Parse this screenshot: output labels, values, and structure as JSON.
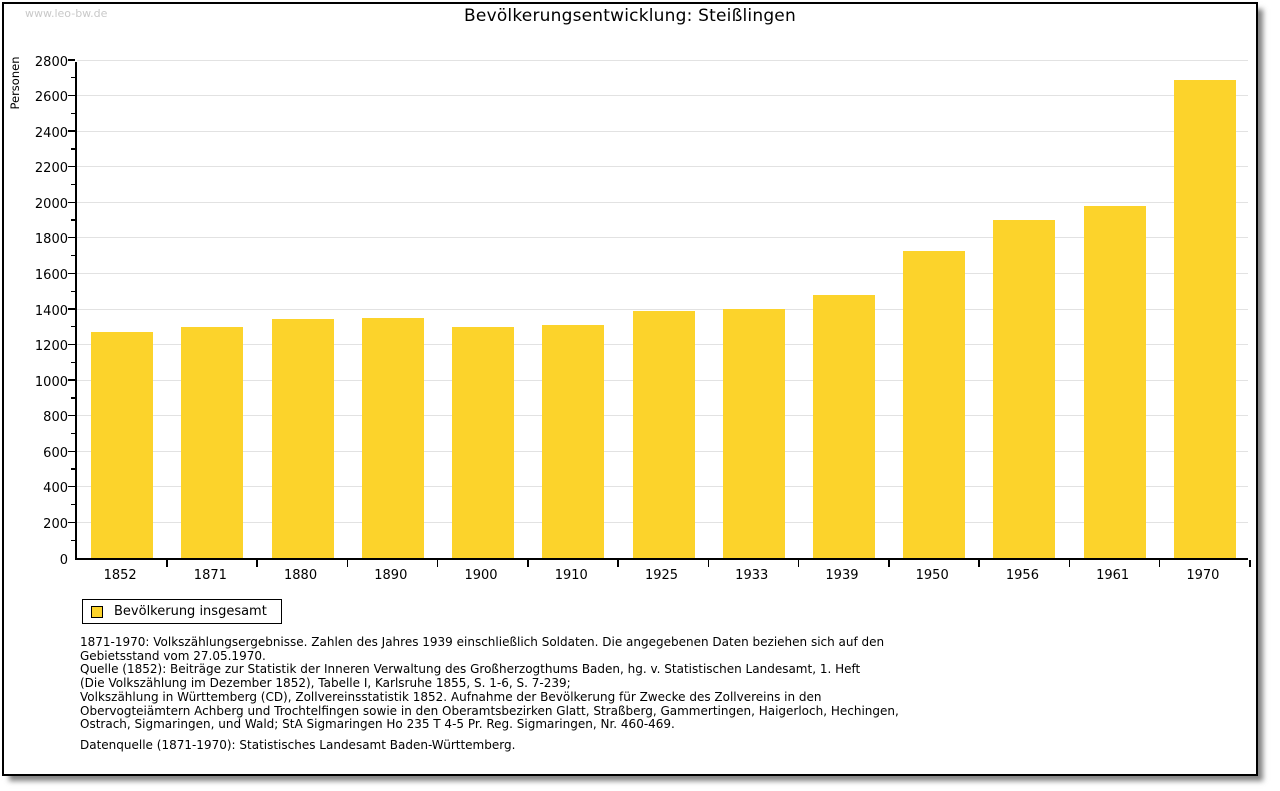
{
  "page": {
    "watermark": "www.leo-bw.de",
    "title": "Bevölkerungsentwicklung: Steißlingen"
  },
  "chart_data": {
    "type": "bar",
    "title": "Bevölkerungsentwicklung: Steißlingen",
    "xlabel": "",
    "ylabel": "Personen",
    "categories": [
      "1852",
      "1871",
      "1880",
      "1890",
      "1900",
      "1910",
      "1925",
      "1933",
      "1939",
      "1950",
      "1956",
      "1961",
      "1970"
    ],
    "values": [
      1270,
      1300,
      1345,
      1350,
      1300,
      1310,
      1390,
      1400,
      1480,
      1725,
      1900,
      1980,
      2685
    ],
    "ylim": [
      0,
      2800
    ],
    "ytick_major": 200,
    "ytick_minor": 100,
    "grid": "horizontal-major",
    "bar_color": "#FCD32B",
    "legend_position": "bottom-left",
    "legend_entries": [
      {
        "label": "Bevölkerung insgesamt",
        "color": "#FCD32B"
      }
    ]
  },
  "legend": {
    "label": "Bevölkerung insgesamt"
  },
  "footnotes": {
    "lines": [
      "1871-1970: Volkszählungsergebnisse. Zahlen des Jahres 1939 einschließlich Soldaten. Die angegebenen Daten beziehen sich auf den",
      "Gebietsstand vom 27.05.1970.",
      "Quelle (1852): Beiträge zur Statistik der Inneren Verwaltung des Großherzogthums Baden, hg. v. Statistischen Landesamt, 1. Heft",
      "(Die Volkszählung im Dezember 1852), Tabelle I, Karlsruhe 1855, S. 1-6, S. 7-239;",
      "Volkszählung in Württemberg (CD), Zollvereinsstatistik 1852. Aufnahme der Bevölkerung für Zwecke des Zollvereins in den",
      "Obervogteiämtern Achberg und Trochtelfingen sowie in den Oberamtsbezirken Glatt, Straßberg, Gammertingen, Haigerloch, Hechingen,",
      "Ostrach, Sigmaringen, und Wald; StA Sigmaringen Ho 235 T 4-5 Pr. Reg. Sigmaringen, Nr. 460-469."
    ],
    "datenquelle": "Datenquelle (1871-1970): Statistisches Landesamt Baden-Württemberg."
  }
}
